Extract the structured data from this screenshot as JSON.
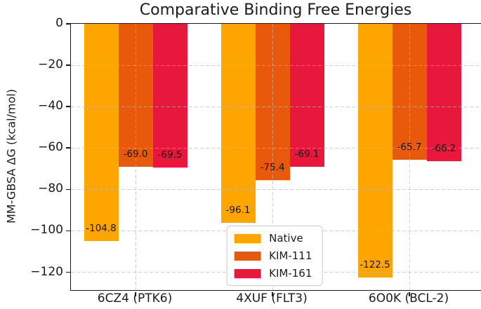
{
  "chart_data": {
    "type": "bar",
    "title": "Comparative Binding Free Energies",
    "ylabel": "MM-GBSA ΔG (kcal/mol)",
    "xlabel": "",
    "categories": [
      "6CZ4 (PTK6)",
      "4XUF (FLT3)",
      "6O0K (BCL-2)"
    ],
    "series": [
      {
        "name": "Native",
        "color": "#FFA500",
        "values": [
          -104.8,
          -96.1,
          -122.5
        ],
        "labels": [
          "-104.8",
          "-96.1",
          "-122.5"
        ]
      },
      {
        "name": "KIM-111",
        "color": "#E8590C",
        "values": [
          -69.0,
          -75.4,
          -65.7
        ],
        "labels": [
          "-69.0",
          "-75.4",
          "-65.7"
        ]
      },
      {
        "name": "KIM-161",
        "color": "#E8173C",
        "values": [
          -69.5,
          -69.1,
          -66.2
        ],
        "labels": [
          "-69.5",
          "-69.1",
          "-66.2"
        ]
      }
    ],
    "ylim": [
      -128.6,
      0
    ],
    "yticks": [
      {
        "value": 0,
        "label": "0"
      },
      {
        "value": -20,
        "label": "−20"
      },
      {
        "value": -40,
        "label": "−40"
      },
      {
        "value": -60,
        "label": "−60"
      },
      {
        "value": -80,
        "label": "−80"
      },
      {
        "value": -100,
        "label": "−100"
      },
      {
        "value": -120,
        "label": "−120"
      }
    ],
    "grid": "dashed, horizontal and vertical, drawn over bars",
    "legend_position": "lower center"
  },
  "colors": {
    "background": "#ffffff",
    "axis_spine": "#1a1a1a",
    "text": "#1c1c1c",
    "gridline": "#b9b9b9",
    "legend_border": "#c9c9c9",
    "series_native": "#FFA500",
    "series_kim111": "#E8590C",
    "series_kim161": "#E8173C"
  }
}
